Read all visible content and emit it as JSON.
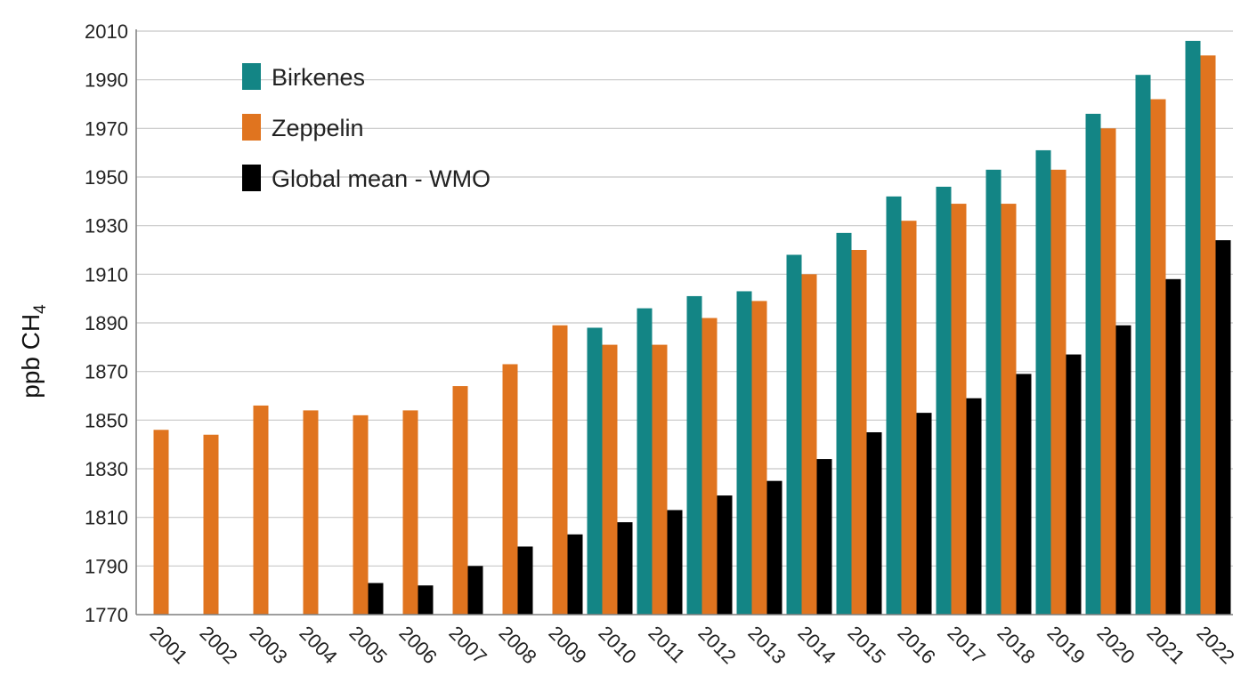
{
  "chart_data": {
    "type": "bar",
    "categories": [
      "2001",
      "2002",
      "2003",
      "2004",
      "2005",
      "2006",
      "2007",
      "2008",
      "2009",
      "2010",
      "2011",
      "2012",
      "2013",
      "2014",
      "2015",
      "2016",
      "2017",
      "2018",
      "2019",
      "2020",
      "2021",
      "2022"
    ],
    "series": [
      {
        "name": "Birkenes",
        "color": "#138585",
        "values": [
          null,
          null,
          null,
          null,
          null,
          null,
          null,
          null,
          null,
          1888,
          1896,
          1901,
          1903,
          1918,
          1927,
          1942,
          1946,
          1953,
          1961,
          1976,
          1992,
          2006
        ]
      },
      {
        "name": "Zeppelin",
        "color": "#e0741f",
        "values": [
          1846,
          1844,
          1856,
          1854,
          1852,
          1854,
          1864,
          1873,
          1889,
          1881,
          1881,
          1892,
          1899,
          1910,
          1920,
          1932,
          1939,
          1939,
          1953,
          1970,
          1982,
          2000
        ]
      },
      {
        "name": "Global mean - WMO",
        "color": "#000000",
        "values": [
          null,
          null,
          null,
          null,
          1783,
          1782,
          1790,
          1798,
          1803,
          1808,
          1813,
          1819,
          1825,
          1834,
          1845,
          1853,
          1859,
          1869,
          1877,
          1889,
          1908,
          1924
        ]
      }
    ],
    "ylabel_main": "ppb CH",
    "ylabel_sub": "4",
    "ylim": [
      1770,
      2010
    ],
    "yticks": [
      1770,
      1790,
      1810,
      1830,
      1850,
      1870,
      1890,
      1910,
      1930,
      1950,
      1970,
      1990,
      2010
    ],
    "grid": true,
    "legend_position": "top-left"
  }
}
